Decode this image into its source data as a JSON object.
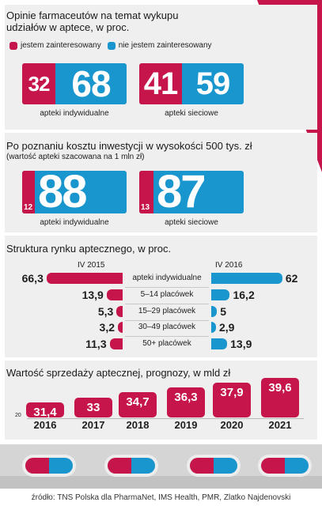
{
  "colors": {
    "interested": "#c5154a",
    "not_interested": "#1a96cf",
    "panel": "#efefef"
  },
  "section1": {
    "title_line1": "Opinie farmaceutów na temat wykupu",
    "title_line2": "udziałów w aptece, w proc.",
    "legend": [
      "jestem zainteresowany",
      "nie jestem zainteresowany"
    ]
  },
  "section2": {
    "title": "Po poznaniu kosztu inwestycji w wysokości 500 tys. zł",
    "subtitle": "(wartość apteki szacowana na 1 mln zł)"
  },
  "section3": {
    "title": "Struktura rynku aptecznego, w proc.",
    "left_period": "IV 2015",
    "right_period": "IV 2016"
  },
  "section4": {
    "title": "Wartość sprzedaży aptecznej, prognozy, w mld zł",
    "axis_min_label": "20"
  },
  "pills": 4,
  "source": "źródło: TNS Polska dla PharmaNet, IMS Health, PMR, Zlatko Najdenovski",
  "chart_data": [
    {
      "type": "bar",
      "title": "Opinie farmaceutów na temat wykupu udziałów w aptece, w proc.",
      "categories": [
        "apteki indywidualne",
        "apteki sieciowe"
      ],
      "series": [
        {
          "name": "jestem zainteresowany",
          "values": [
            32,
            41
          ]
        },
        {
          "name": "nie jestem zainteresowany",
          "values": [
            68,
            59
          ]
        }
      ],
      "stacked": true
    },
    {
      "type": "bar",
      "title": "Po poznaniu kosztu inwestycji w wysokości 500 tys. zł",
      "subtitle": "(wartość apteki szacowana na 1 mln zł)",
      "categories": [
        "apteki indywidualne",
        "apteki sieciowe"
      ],
      "series": [
        {
          "name": "jestem zainteresowany",
          "values": [
            12,
            13
          ]
        },
        {
          "name": "nie jestem zainteresowany",
          "values": [
            88,
            87
          ]
        }
      ],
      "stacked": true
    },
    {
      "type": "bar",
      "title": "Struktura rynku aptecznego, w proc.",
      "categories": [
        "apteki indywidualne",
        "5–14 placówek",
        "15–29 placówek",
        "30–49 placówek",
        "50+ placówek"
      ],
      "series": [
        {
          "name": "IV 2015",
          "values": [
            66.3,
            13.9,
            5.3,
            3.2,
            11.3
          ],
          "labels": [
            "66,3",
            "13,9",
            "5,3",
            "3,2",
            "11,3"
          ]
        },
        {
          "name": "IV 2016",
          "values": [
            62,
            16.2,
            5,
            2.9,
            13.9
          ],
          "labels": [
            "62",
            "16,2",
            "5",
            "2,9",
            "13,9"
          ]
        }
      ]
    },
    {
      "type": "bar",
      "title": "Wartość sprzedaży aptecznej, prognozy, w mld zł",
      "categories": [
        "2016",
        "2017",
        "2018",
        "2019",
        "2020",
        "2021"
      ],
      "values": [
        31.4,
        33,
        34.7,
        36.3,
        37.9,
        39.6
      ],
      "labels": [
        "31,4",
        "33",
        "34,7",
        "36,3",
        "37,9",
        "39,6"
      ],
      "ylim": [
        20,
        40
      ]
    }
  ]
}
